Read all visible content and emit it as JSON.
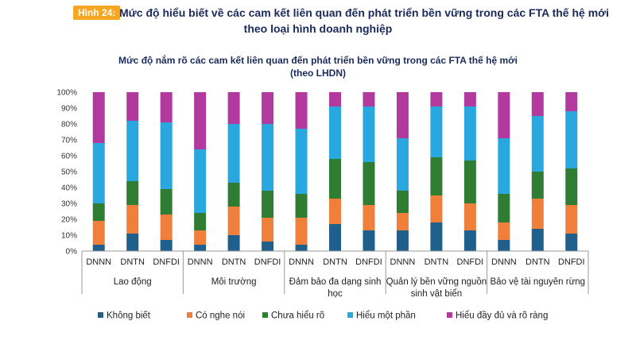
{
  "figure": {
    "badge": "Hình 24:",
    "title_line1": "Mức độ hiểu biết về các cam kết liên quan đến phát triển bền vững trong các FTA thế hệ mới",
    "title_line2": "theo loại hình doanh nghiệp"
  },
  "chart_data": {
    "type": "bar",
    "stacked": true,
    "title": [
      "Mức độ nắm rõ các cam kết liên quan đến phát triển bền vững trong các FTA thế hệ mới",
      "(theo LHDN)"
    ],
    "y_ticks": [
      "0%",
      "10%",
      "20%",
      "30%",
      "40%",
      "50%",
      "60%",
      "70%",
      "80%",
      "90%",
      "100%"
    ],
    "ylim": [
      0,
      100
    ],
    "grid": false,
    "legend_position": "bottom",
    "groups": [
      {
        "label": [
          "Lao động"
        ],
        "categories": [
          "DNNN",
          "DNTN",
          "DNFDI"
        ]
      },
      {
        "label": [
          "Môi trường"
        ],
        "categories": [
          "DNNN",
          "DNTN",
          "DNFDI"
        ]
      },
      {
        "label": [
          "Đảm bảo đa dạng sinh",
          "học"
        ],
        "categories": [
          "DNNN",
          "DNTN",
          "DNFDI"
        ]
      },
      {
        "label": [
          "Quản lý bền vững nguồn",
          "sinh vật biển"
        ],
        "categories": [
          "DNNN",
          "DNTN",
          "DNFDI"
        ]
      },
      {
        "label": [
          "Bảo vệ tài nguyên rừng"
        ],
        "categories": [
          "DNNN",
          "DNTN",
          "DNFDI"
        ]
      }
    ],
    "series": [
      {
        "name": "Không biết",
        "color": "#1f5f8b",
        "values": [
          4,
          11,
          7,
          4,
          10,
          6,
          4,
          17,
          13,
          13,
          18,
          13,
          7,
          14,
          11
        ]
      },
      {
        "name": "Có nghe nói",
        "color": "#f07f3c",
        "values": [
          15,
          18,
          16,
          9,
          18,
          15,
          17,
          16,
          16,
          11,
          17,
          17,
          11,
          19,
          18
        ]
      },
      {
        "name": "Chưa hiểu rõ",
        "color": "#2e7d32",
        "values": [
          11,
          15,
          16,
          11,
          15,
          17,
          15,
          25,
          27,
          14,
          24,
          27,
          18,
          17,
          23
        ]
      },
      {
        "name": "Hiểu một phần",
        "color": "#29a8e0",
        "values": [
          38,
          38,
          42,
          40,
          37,
          42,
          41,
          33,
          35,
          33,
          32,
          34,
          35,
          35,
          36
        ]
      },
      {
        "name": "Hiểu đầy đủ và rõ ràng",
        "color": "#b23a9e",
        "values": [
          32,
          18,
          19,
          36,
          20,
          20,
          23,
          9,
          9,
          29,
          9,
          9,
          29,
          15,
          12
        ]
      }
    ]
  }
}
